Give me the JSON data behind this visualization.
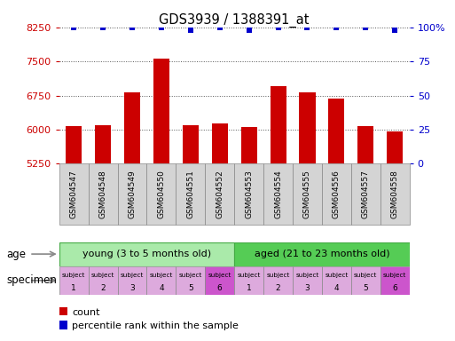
{
  "title": "GDS3939 / 1388391_at",
  "categories": [
    "GSM604547",
    "GSM604548",
    "GSM604549",
    "GSM604550",
    "GSM604551",
    "GSM604552",
    "GSM604553",
    "GSM604554",
    "GSM604555",
    "GSM604556",
    "GSM604557",
    "GSM604558"
  ],
  "bar_values": [
    6075,
    6100,
    6820,
    7560,
    6090,
    6135,
    6055,
    6950,
    6820,
    6680,
    6075,
    5960
  ],
  "percentile_values": [
    100,
    100,
    100,
    100,
    98,
    100,
    98,
    100,
    100,
    100,
    100,
    98
  ],
  "bar_color": "#cc0000",
  "dot_color": "#0000cc",
  "ylim_left": [
    5250,
    8250
  ],
  "ylim_right": [
    0,
    100
  ],
  "yticks_left": [
    5250,
    6000,
    6750,
    7500,
    8250
  ],
  "yticks_right": [
    0,
    25,
    50,
    75,
    100
  ],
  "ytick_labels_left": [
    "5250",
    "6000",
    "6750",
    "7500",
    "8250"
  ],
  "ytick_labels_right": [
    "0",
    "25",
    "50",
    "75",
    "100%"
  ],
  "age_young_label": "young (3 to 5 months old)",
  "age_aged_label": "aged (21 to 23 months old)",
  "age_young_color": "#aaeaaa",
  "age_aged_color": "#55cc55",
  "specimen_colors_young": [
    "#ddaadd",
    "#ddaadd",
    "#ddaadd",
    "#ddaadd",
    "#ddaadd",
    "#cc55cc"
  ],
  "specimen_colors_aged": [
    "#ddaadd",
    "#ddaadd",
    "#ddaadd",
    "#ddaadd",
    "#ddaadd",
    "#cc55cc"
  ],
  "specimen_numbers_young": [
    "1",
    "2",
    "3",
    "4",
    "5",
    "6"
  ],
  "specimen_numbers_aged": [
    "1",
    "2",
    "3",
    "4",
    "5",
    "6"
  ],
  "bg_color": "#ffffff",
  "grid_color": "#555555",
  "bar_width": 0.55,
  "tick_label_color_left": "#cc0000",
  "tick_label_color_right": "#0000cc",
  "legend_count_color": "#cc0000",
  "legend_pct_color": "#0000cc"
}
